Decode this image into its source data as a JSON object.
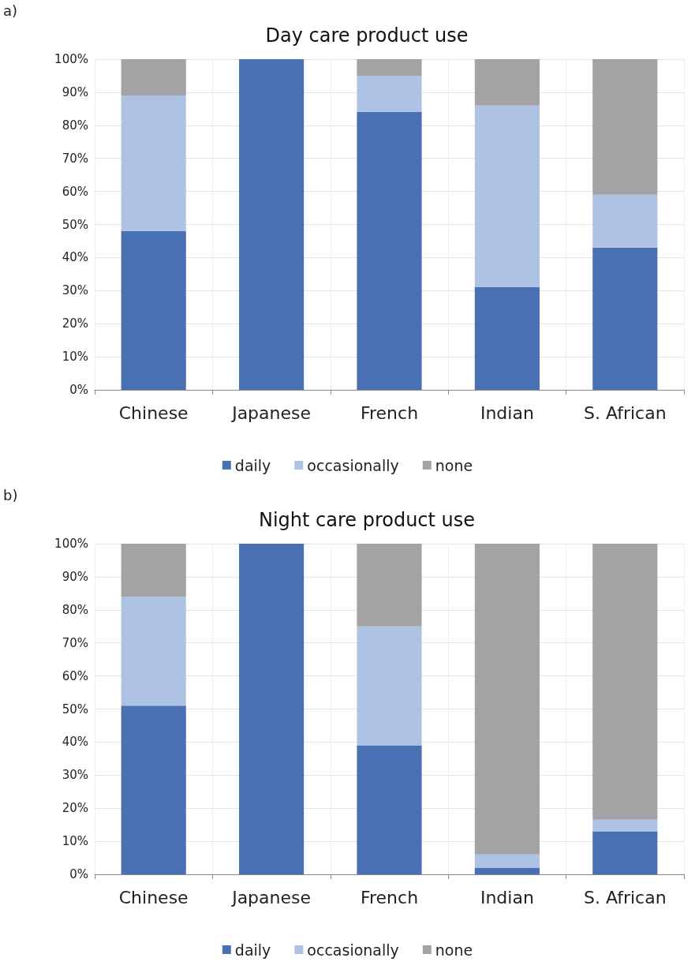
{
  "chart_data": [
    {
      "type": "bar",
      "stacked": true,
      "title": "Day care product use",
      "annotations": [
        "a)"
      ],
      "categories": [
        "Chinese",
        "Japanese",
        "French",
        "Indian",
        "S. African"
      ],
      "series": [
        {
          "name": "daily",
          "color": "#4a70b4",
          "values": [
            48,
            100,
            84,
            31,
            43
          ]
        },
        {
          "name": "occasionally",
          "color": "#aec3e3",
          "values": [
            41,
            0,
            11,
            55,
            16
          ]
        },
        {
          "name": "none",
          "color": "#a3a3a3",
          "values": [
            11,
            0,
            5,
            14,
            41
          ]
        }
      ],
      "ylim": [
        0,
        100
      ],
      "yticks": [
        {
          "value": 0,
          "label": "0%"
        },
        {
          "value": 10,
          "label": "10%"
        },
        {
          "value": 20,
          "label": "20%"
        },
        {
          "value": 30,
          "label": "30%"
        },
        {
          "value": 40,
          "label": "40%"
        },
        {
          "value": 50,
          "label": "50%"
        },
        {
          "value": 60,
          "label": "60%"
        },
        {
          "value": 70,
          "label": "70%"
        },
        {
          "value": 80,
          "label": "80%"
        },
        {
          "value": 90,
          "label": "90%"
        },
        {
          "value": 100,
          "label": "100%"
        }
      ],
      "grid": true,
      "legend": "bottom"
    },
    {
      "type": "bar",
      "stacked": true,
      "title": "Night care product use",
      "annotations": [
        "b)"
      ],
      "categories": [
        "Chinese",
        "Japanese",
        "French",
        "Indian",
        "S. African"
      ],
      "series": [
        {
          "name": "daily",
          "color": "#4a70b4",
          "values": [
            51,
            100,
            39,
            2,
            13
          ]
        },
        {
          "name": "occasionally",
          "color": "#aec3e3",
          "values": [
            33,
            0,
            36,
            4,
            3.5
          ]
        },
        {
          "name": "none",
          "color": "#a3a3a3",
          "values": [
            16,
            0,
            25,
            94,
            83.5
          ]
        }
      ],
      "ylim": [
        0,
        100
      ],
      "yticks": [
        {
          "value": 0,
          "label": "0%"
        },
        {
          "value": 10,
          "label": "10%"
        },
        {
          "value": 20,
          "label": "20%"
        },
        {
          "value": 30,
          "label": "30%"
        },
        {
          "value": 40,
          "label": "40%"
        },
        {
          "value": 50,
          "label": "50%"
        },
        {
          "value": 60,
          "label": "60%"
        },
        {
          "value": 70,
          "label": "70%"
        },
        {
          "value": 80,
          "label": "80%"
        },
        {
          "value": 90,
          "label": "90%"
        },
        {
          "value": 100,
          "label": "100%"
        }
      ],
      "grid": true,
      "legend": "bottom"
    }
  ]
}
